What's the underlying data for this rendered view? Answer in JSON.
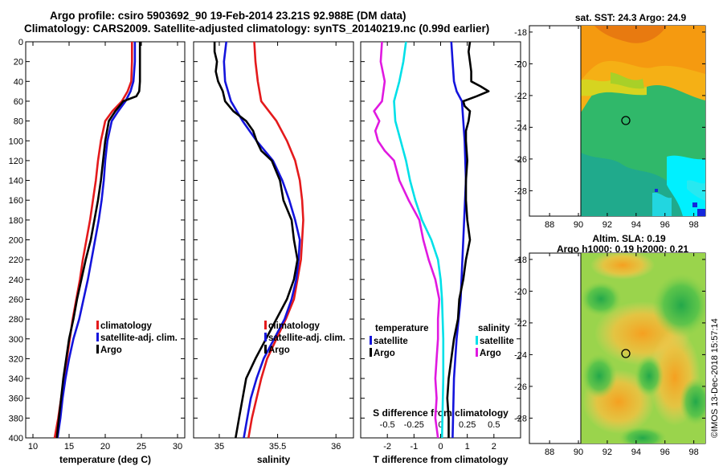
{
  "header": {
    "line1": "Argo profile: csiro 5903692_90 19-Feb-2014 23.21S 92.988E (DM data)",
    "line2": "Climatology: CARS2009. Satellite-adjusted climatology: synTS_20140219.nc (0.99d earlier)"
  },
  "colors": {
    "climatology": "#e41a1c",
    "satellite": "#1414dc",
    "argo": "#000000",
    "sat_temp": "#00e0e8",
    "sat_sal": "#e019e0"
  },
  "depth_ticks": [
    0,
    20,
    40,
    60,
    80,
    100,
    120,
    140,
    160,
    180,
    200,
    220,
    240,
    260,
    280,
    300,
    320,
    340,
    360,
    380,
    400
  ],
  "chart_data": [
    {
      "type": "line",
      "id": "temperature",
      "xlabel": "temperature (deg C)",
      "ylabel": "",
      "xlim": [
        9,
        31
      ],
      "ylim": [
        400,
        0
      ],
      "xticks": [
        10,
        15,
        20,
        25,
        30
      ],
      "legend_position": "bottom-center",
      "series": [
        {
          "name": "climatology",
          "color": "#e41a1c",
          "depth": [
            0,
            20,
            40,
            50,
            60,
            70,
            80,
            100,
            120,
            140,
            160,
            180,
            200,
            220,
            240,
            260,
            280,
            300,
            320,
            340,
            360,
            380,
            400
          ],
          "values": [
            23.7,
            23.7,
            23.6,
            23.1,
            22.3,
            21.0,
            20.0,
            19.4,
            19.0,
            18.7,
            18.3,
            17.9,
            17.4,
            16.9,
            16.5,
            16.0,
            15.5,
            15.1,
            14.7,
            14.3,
            13.9,
            13.5,
            13.0
          ]
        },
        {
          "name": "satellite-adj. clim.",
          "color": "#1414dc",
          "depth": [
            0,
            20,
            40,
            50,
            60,
            70,
            80,
            100,
            120,
            140,
            160,
            180,
            200,
            220,
            240,
            260,
            280,
            300,
            320,
            340,
            360,
            380,
            400
          ],
          "values": [
            24.1,
            24.1,
            23.9,
            23.5,
            22.8,
            21.8,
            20.9,
            20.3,
            20.0,
            19.8,
            19.5,
            19.1,
            18.6,
            18.1,
            17.6,
            17.0,
            16.4,
            15.6,
            15.0,
            14.5,
            14.1,
            13.8,
            13.4
          ]
        },
        {
          "name": "Argo",
          "color": "#000000",
          "depth": [
            0,
            20,
            40,
            50,
            55,
            60,
            70,
            80,
            100,
            120,
            140,
            160,
            180,
            200,
            220,
            240,
            260,
            280,
            300,
            320,
            340,
            360,
            380,
            400
          ],
          "values": [
            24.8,
            24.8,
            24.8,
            24.7,
            24.3,
            22.5,
            21.4,
            20.5,
            20.0,
            19.7,
            19.4,
            19.0,
            18.5,
            18.0,
            17.3,
            16.7,
            16.1,
            15.6,
            15.0,
            14.6,
            14.2,
            13.9,
            13.6,
            13.3
          ]
        }
      ]
    },
    {
      "type": "line",
      "id": "salinity",
      "xlabel": "salinity",
      "ylabel": "",
      "xlim": [
        34.78,
        36.15
      ],
      "ylim": [
        400,
        0
      ],
      "xticks": [
        35,
        35.5,
        36
      ],
      "legend_position": "bottom-right",
      "series": [
        {
          "name": "climatology",
          "color": "#e41a1c",
          "depth": [
            0,
            20,
            40,
            60,
            80,
            100,
            120,
            140,
            160,
            180,
            200,
            220,
            240,
            260,
            280,
            300,
            320,
            340,
            360,
            380,
            400
          ],
          "values": [
            35.3,
            35.31,
            35.33,
            35.36,
            35.49,
            35.58,
            35.65,
            35.69,
            35.71,
            35.72,
            35.71,
            35.7,
            35.67,
            35.64,
            35.57,
            35.49,
            35.41,
            35.36,
            35.32,
            35.28,
            35.25
          ]
        },
        {
          "name": "satellite-adj. clim.",
          "color": "#1414dc",
          "depth": [
            0,
            20,
            40,
            60,
            80,
            100,
            120,
            140,
            160,
            180,
            200,
            220,
            240,
            260,
            280,
            300,
            320,
            340,
            360,
            380,
            400
          ],
          "values": [
            35.06,
            35.04,
            35.05,
            35.1,
            35.2,
            35.32,
            35.46,
            35.54,
            35.6,
            35.65,
            35.69,
            35.68,
            35.66,
            35.62,
            35.56,
            35.47,
            35.38,
            35.32,
            35.27,
            35.24,
            35.21
          ]
        },
        {
          "name": "Argo",
          "color": "#000000",
          "depth": [
            0,
            10,
            20,
            30,
            40,
            50,
            60,
            70,
            80,
            90,
            100,
            110,
            120,
            140,
            160,
            180,
            200,
            220,
            240,
            260,
            280,
            300,
            320,
            340,
            360,
            380,
            400
          ],
          "values": [
            34.96,
            34.96,
            34.98,
            34.97,
            34.99,
            35.03,
            35.05,
            35.12,
            35.23,
            35.29,
            35.32,
            35.36,
            35.45,
            35.52,
            35.55,
            35.62,
            35.64,
            35.67,
            35.64,
            35.58,
            35.49,
            35.4,
            35.31,
            35.23,
            35.2,
            35.17,
            35.14
          ]
        }
      ]
    },
    {
      "type": "line",
      "id": "difference",
      "xlabel": "T difference from climatology",
      "xlabel_top": "S difference from climatology",
      "ylabel": "",
      "xlim": [
        -3,
        3
      ],
      "ylim": [
        400,
        0
      ],
      "xticks": [
        -2,
        -1,
        0,
        1,
        2
      ],
      "xticklabels": [
        "-2",
        "-1",
        "0",
        "1",
        "2"
      ],
      "sticks": [
        -2,
        -1,
        0,
        1,
        2
      ],
      "sticklabels": [
        "-0.5",
        "-0.25",
        "0",
        "0.25",
        "0.5"
      ],
      "legend_position": "bottom",
      "legend_groups": [
        "temperature",
        "salinity"
      ],
      "series": [
        {
          "name": "satellite",
          "group": "temperature",
          "color": "#1414dc",
          "depth": [
            0,
            20,
            40,
            50,
            60,
            80,
            100,
            140,
            200,
            260,
            300,
            340,
            400
          ],
          "values": [
            0.4,
            0.45,
            0.5,
            0.6,
            0.8,
            0.85,
            0.9,
            0.95,
            0.85,
            0.75,
            0.6,
            0.5,
            0.45
          ]
        },
        {
          "name": "Argo",
          "group": "temperature",
          "color": "#000000",
          "depth": [
            0,
            10,
            20,
            30,
            40,
            45,
            50,
            55,
            60,
            65,
            70,
            80,
            90,
            100,
            120,
            140,
            160,
            180,
            200,
            220,
            240,
            260,
            280,
            300,
            320,
            340,
            360,
            380,
            400
          ],
          "values": [
            1.1,
            1.05,
            1.1,
            1.15,
            1.15,
            1.5,
            1.8,
            1.35,
            0.85,
            0.9,
            1.1,
            1.05,
            0.95,
            0.95,
            1.0,
            0.95,
            0.95,
            1.0,
            1.1,
            0.95,
            0.85,
            0.7,
            0.65,
            0.5,
            0.4,
            0.3,
            0.25,
            0.3,
            0.3
          ]
        },
        {
          "name": "satellite",
          "group": "salinity",
          "color": "#00e0e8",
          "depth": [
            0,
            20,
            40,
            60,
            80,
            100,
            120,
            140,
            160,
            180,
            200,
            220,
            240,
            260,
            300,
            340,
            400
          ],
          "values": [
            -1.3,
            -1.4,
            -1.55,
            -1.75,
            -1.7,
            -1.5,
            -1.3,
            -1.15,
            -0.95,
            -0.7,
            -0.35,
            -0.1,
            0.0,
            0.05,
            0.1,
            0.1,
            0.05
          ]
        },
        {
          "name": "Argo",
          "group": "salinity",
          "color": "#e019e0",
          "depth": [
            0,
            20,
            40,
            60,
            70,
            80,
            90,
            100,
            110,
            120,
            140,
            160,
            180,
            200,
            220,
            240,
            260,
            280,
            300,
            320,
            340,
            360,
            380,
            400
          ],
          "values": [
            -2.2,
            -2.25,
            -2.1,
            -2.2,
            -2.5,
            -2.3,
            -2.45,
            -2.35,
            -2.1,
            -1.75,
            -1.55,
            -1.2,
            -0.8,
            -0.65,
            -0.45,
            -0.2,
            -0.05,
            -0.1,
            -0.1,
            -0.15,
            -0.2,
            -0.15,
            -0.2,
            -0.1
          ]
        }
      ]
    }
  ],
  "maps": [
    {
      "id": "sst",
      "title": "sat. SST: 24.3 Argo: 24.9",
      "subtitle": "",
      "yticklabels": [
        "-18",
        "-20",
        "-22",
        "-24",
        "-26",
        "-28"
      ],
      "xticklabels": [
        "88",
        "90",
        "92",
        "94",
        "96",
        "98"
      ],
      "argo_lon": 92.988,
      "argo_lat": -23.21
    },
    {
      "id": "sla",
      "title": "Altim. SLA: 0.19",
      "subtitle": "Argo h1000: 0.19 h2000: 0.21",
      "yticklabels": [
        "-18",
        "-20",
        "-22",
        "-24",
        "-26",
        "-28"
      ],
      "xticklabels": [
        "88",
        "90",
        "92",
        "94",
        "96",
        "98"
      ],
      "argo_lon": 92.988,
      "argo_lat": -23.21
    }
  ],
  "credit": "©IMOS 13-Dec-2018 15:57:14"
}
